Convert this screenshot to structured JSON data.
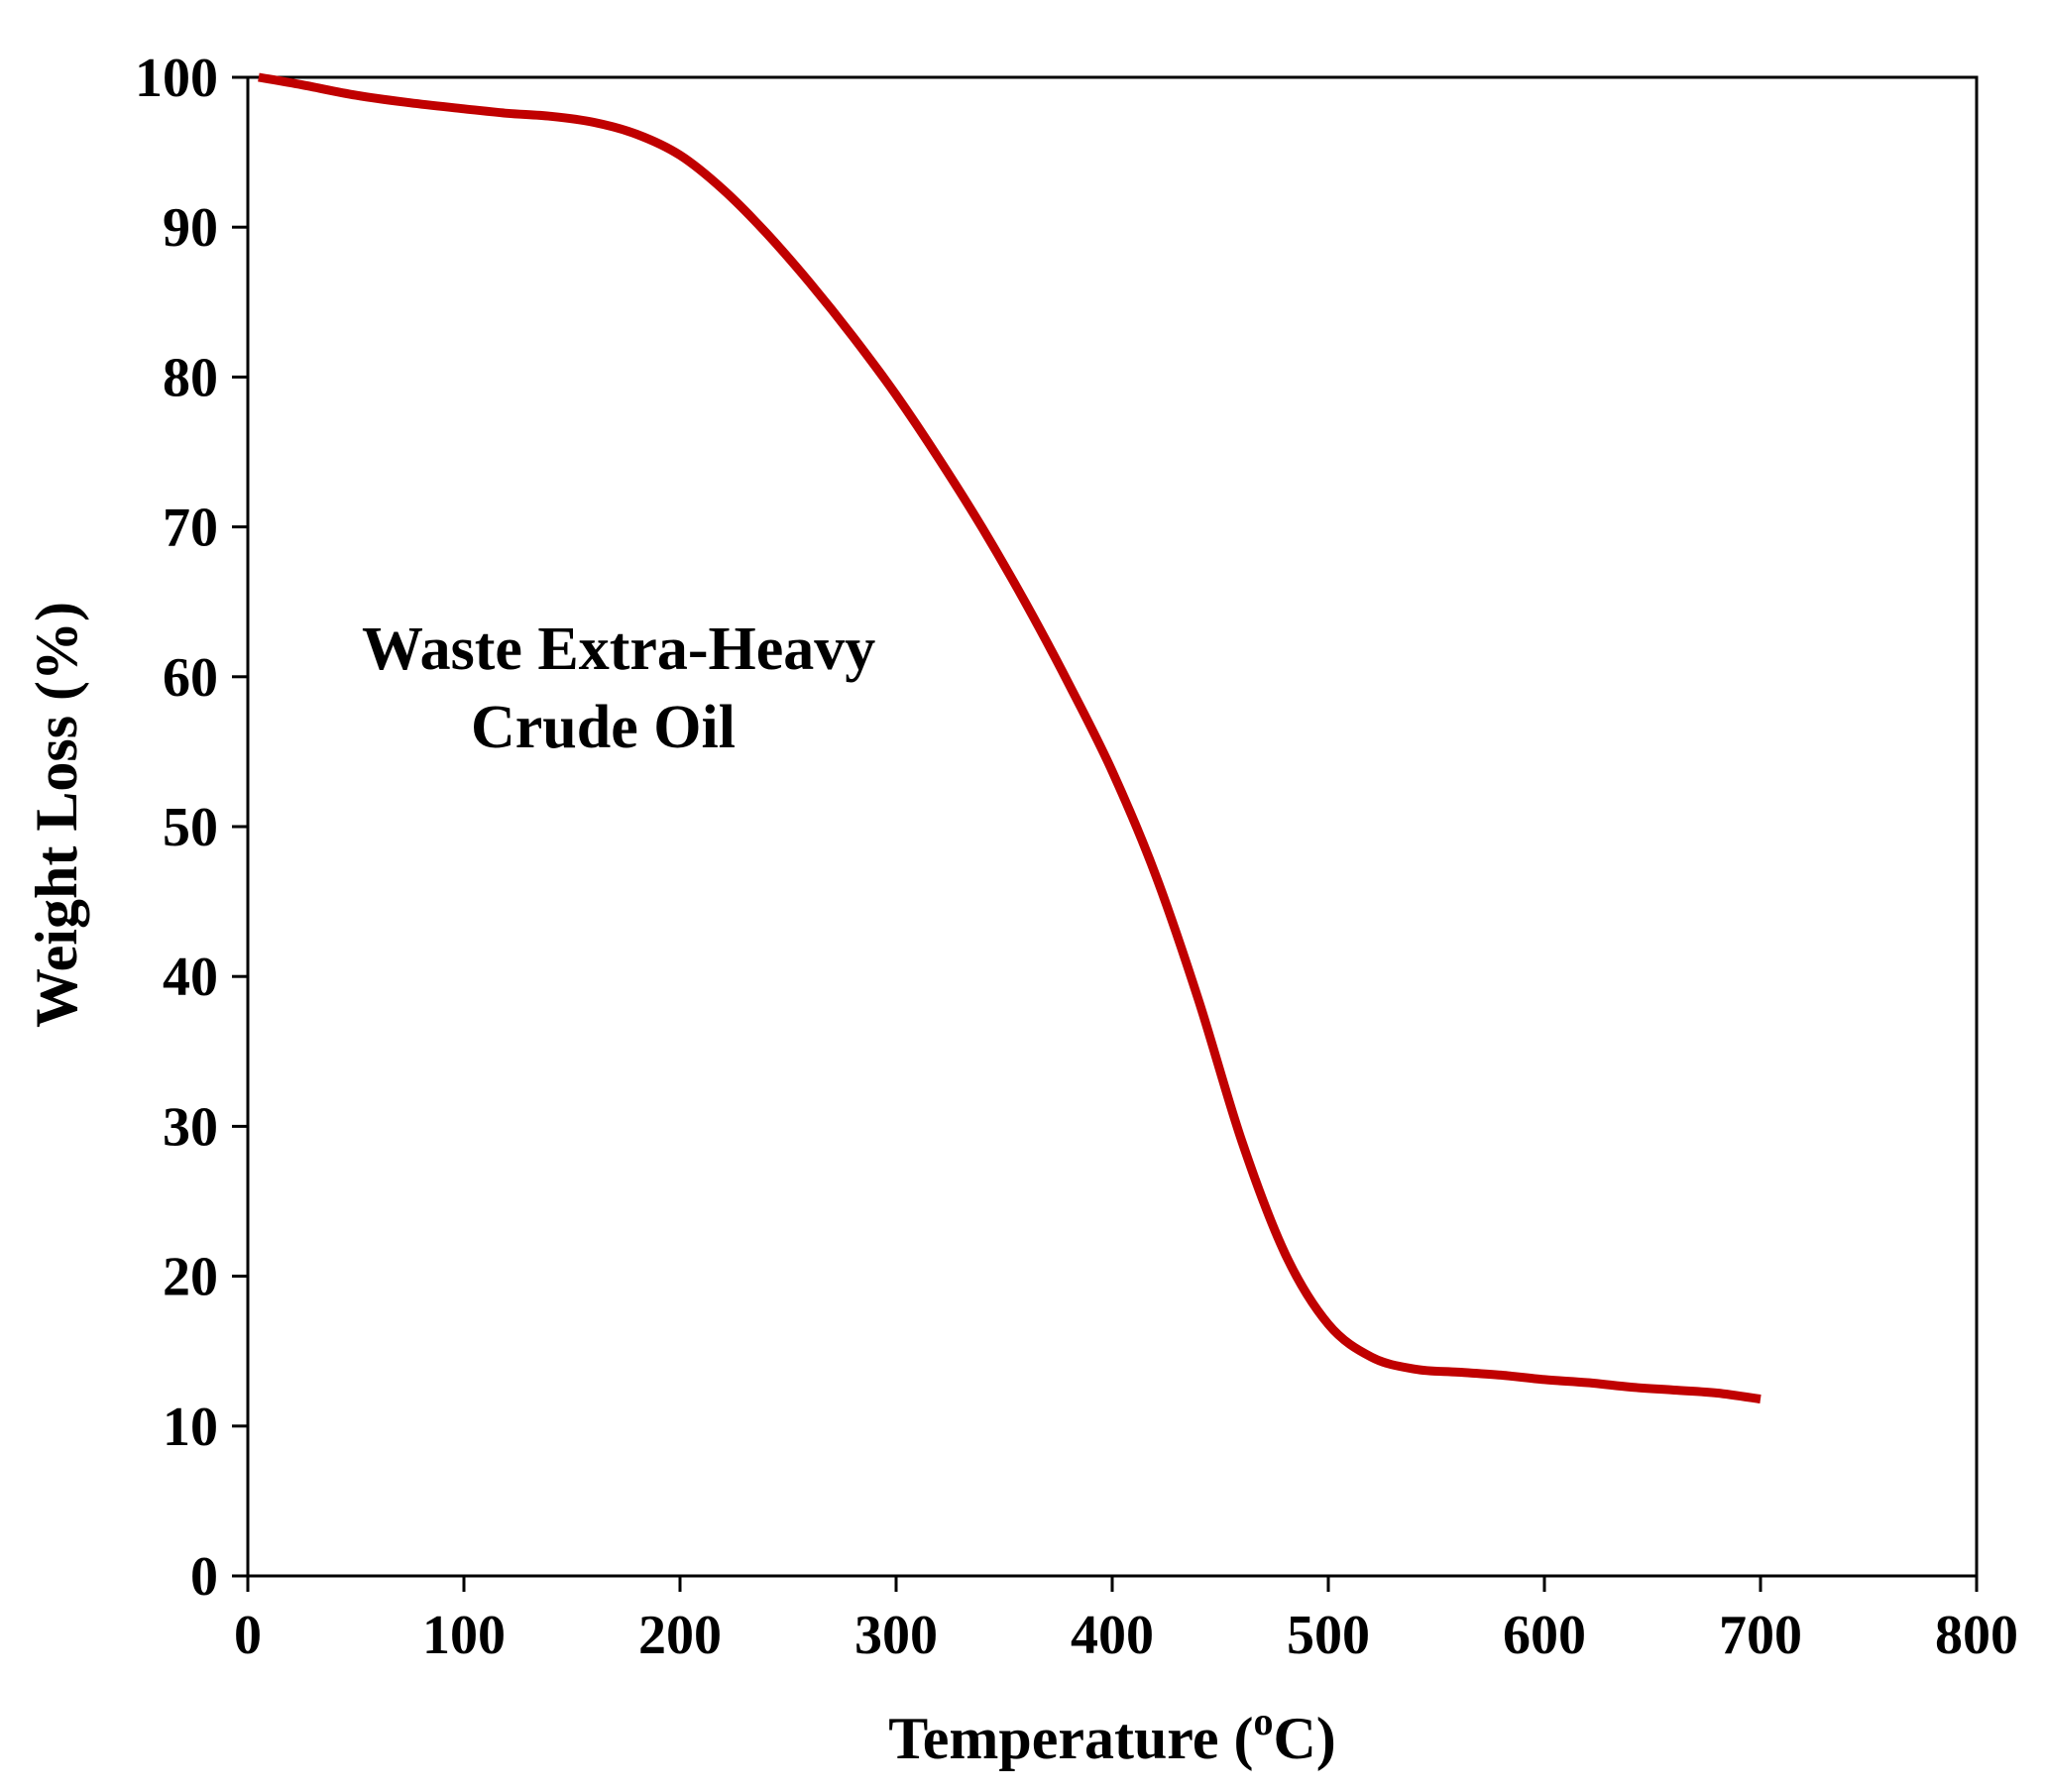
{
  "chart_data": {
    "type": "line",
    "title": "",
    "xlabel": "Temperature (",
    "xlabel_superscript": "o",
    "xlabel_unit": "C)",
    "ylabel": "Weight Loss (%)",
    "xlim": [
      0,
      800
    ],
    "ylim": [
      0,
      100
    ],
    "x_ticks": [
      0,
      100,
      200,
      300,
      400,
      500,
      600,
      700,
      800
    ],
    "y_ticks": [
      0,
      10,
      20,
      30,
      40,
      50,
      60,
      70,
      80,
      90,
      100
    ],
    "grid": false,
    "annotation": {
      "line1": "Waste Extra-Heavy",
      "line2": "Crude Oil",
      "anchor": {
        "x": 260,
        "y": 59
      }
    },
    "series": [
      {
        "name": "Waste Extra-Heavy Crude Oil",
        "color": "#c00000",
        "x": [
          5,
          25,
          50,
          75,
          100,
          120,
          140,
          160,
          180,
          200,
          220,
          240,
          260,
          280,
          300,
          320,
          340,
          360,
          380,
          400,
          420,
          440,
          460,
          480,
          500,
          520,
          540,
          560,
          580,
          600,
          620,
          640,
          660,
          680,
          700
        ],
        "y": [
          100,
          99.5,
          98.8,
          98.3,
          97.9,
          97.6,
          97.4,
          97.0,
          96.2,
          94.8,
          92.5,
          89.6,
          86.3,
          82.7,
          78.8,
          74.5,
          69.9,
          64.9,
          59.5,
          53.7,
          46.8,
          38.4,
          29.0,
          21.5,
          16.8,
          14.6,
          13.8,
          13.6,
          13.4,
          13.1,
          12.9,
          12.6,
          12.4,
          12.2,
          11.8
        ]
      }
    ]
  }
}
